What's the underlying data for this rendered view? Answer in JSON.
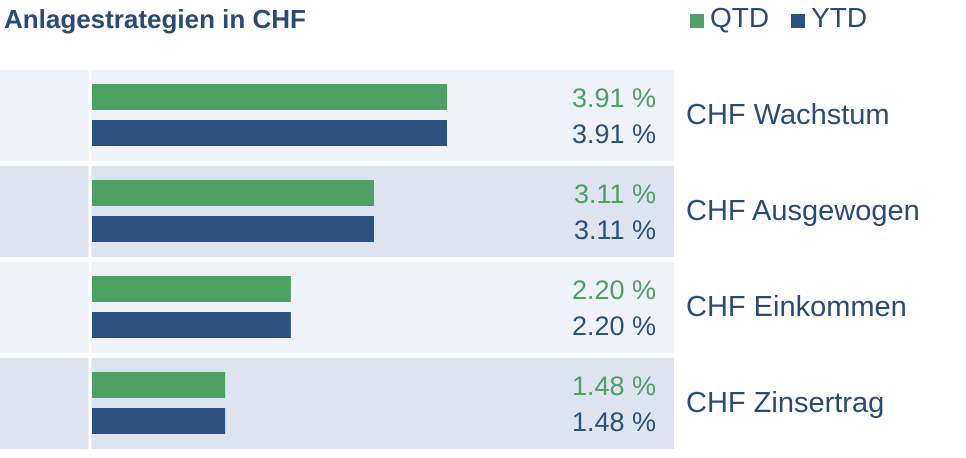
{
  "chart_data": {
    "type": "bar",
    "orientation": "horizontal",
    "title": "Anlagestrategien in CHF",
    "categories": [
      "CHF Wachstum",
      "CHF Ausgewogen",
      "CHF Einkommen",
      "CHF Zinsertrag"
    ],
    "series": [
      {
        "name": "QTD",
        "color": "#4fa065",
        "values": [
          3.91,
          3.11,
          2.2,
          1.48
        ],
        "labels": [
          "3.91 %",
          "3.11 %",
          "2.20 %",
          "1.48 %"
        ]
      },
      {
        "name": "YTD",
        "color": "#2b527e",
        "values": [
          3.91,
          3.11,
          2.2,
          1.48
        ],
        "labels": [
          "3.91 %",
          "3.11 %",
          "2.20 %",
          "1.48 %"
        ]
      }
    ],
    "xlim": [
      0,
      4.3
    ],
    "legend_position": "top-right",
    "row_colors": [
      "#eff2f8",
      "#dde3ef"
    ]
  }
}
